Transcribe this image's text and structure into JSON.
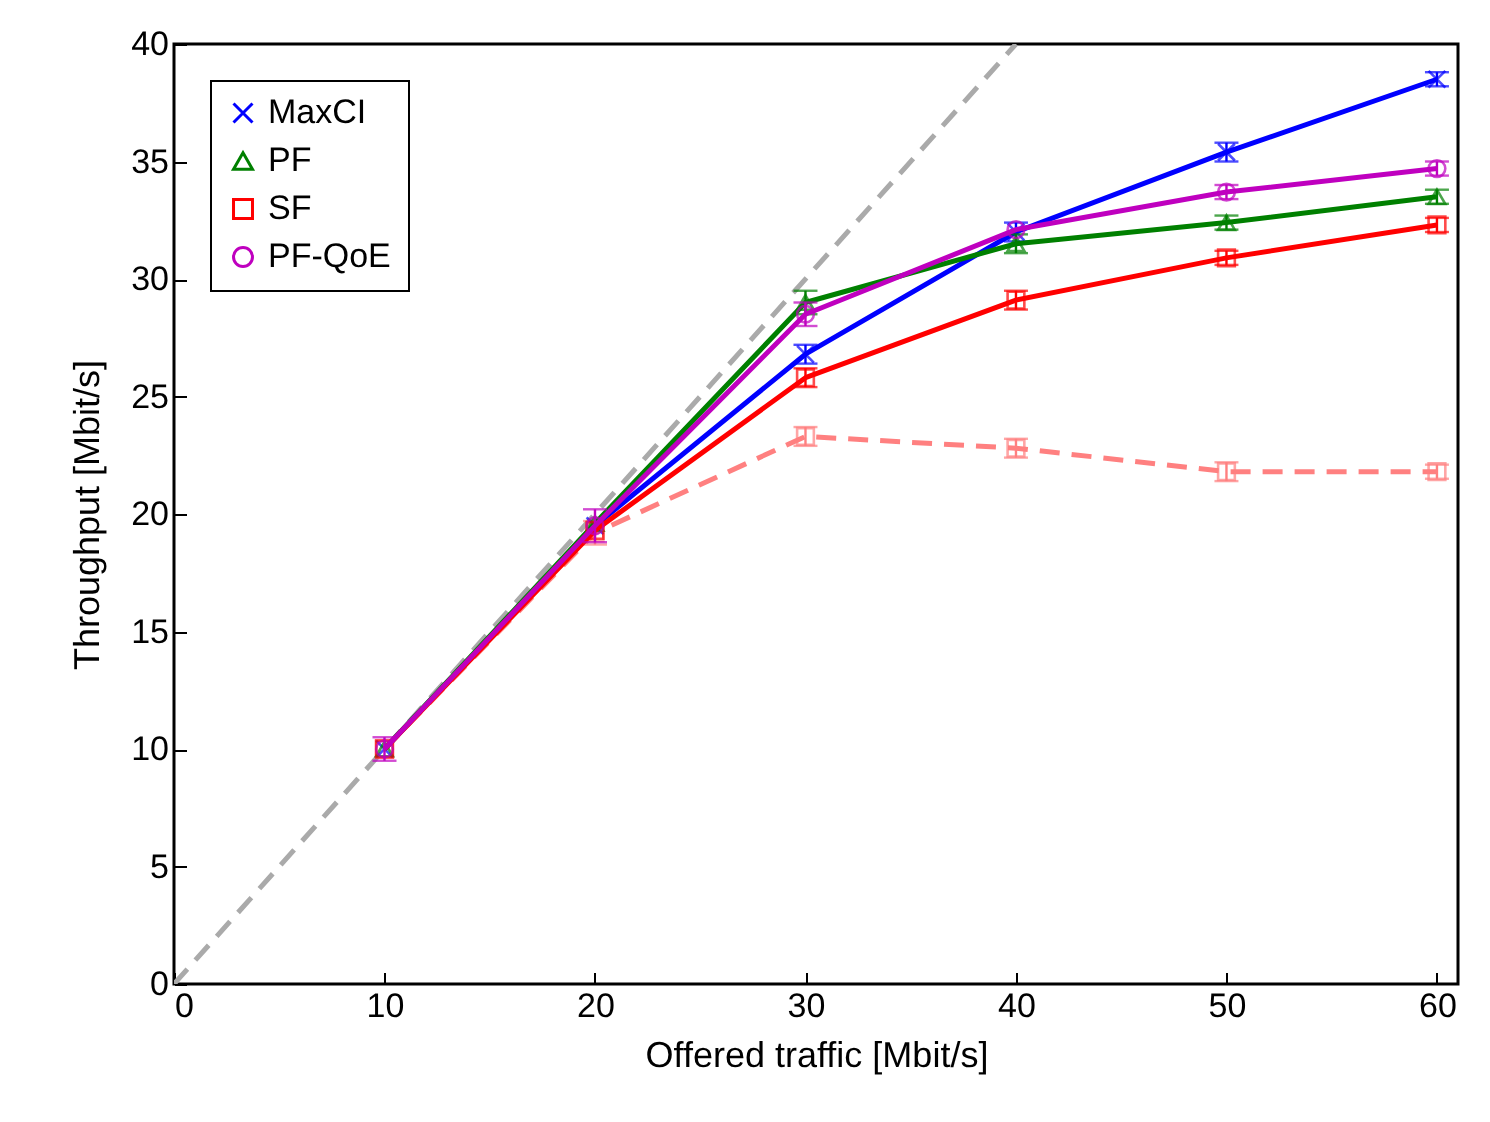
{
  "chart_data": {
    "type": "line",
    "xlabel": "Offered traffic [Mbit/s]",
    "ylabel": "Throughput [Mbit/s]",
    "x": [
      10,
      20,
      30,
      40,
      50,
      60
    ],
    "series": [
      {
        "type": "line",
        "color": "#aaaaaa",
        "marker": "none",
        "line_style": "dashed",
        "x": [
          0,
          40
        ],
        "values": [
          0,
          40
        ]
      },
      {
        "color": "#ff8080",
        "marker": "square",
        "line_style": "dashed",
        "values": [
          10,
          19.2,
          23.3,
          22.8,
          21.8,
          21.8
        ],
        "errors": [
          null,
          0.5,
          0.4,
          0.4,
          0.4,
          0.3
        ]
      },
      {
        "name": "MaxCI",
        "color": "#0000ff",
        "marker": "cross",
        "values": [
          10,
          19.5,
          26.8,
          32.0,
          35.4,
          38.5
        ],
        "errors": [
          null,
          null,
          0.4,
          0.4,
          0.4,
          0.3
        ]
      },
      {
        "name": "PF",
        "color": "#008000",
        "marker": "triangle",
        "values": [
          10,
          19.6,
          29.0,
          31.5,
          32.4,
          33.5
        ],
        "errors": [
          null,
          null,
          0.5,
          0.4,
          0.3,
          0.3
        ]
      },
      {
        "name": "SF",
        "color": "#ff0000",
        "marker": "square",
        "values": [
          10,
          19.3,
          25.8,
          29.1,
          30.9,
          32.3
        ],
        "errors": [
          null,
          null,
          0.4,
          0.4,
          0.3,
          0.3
        ]
      },
      {
        "name": "PF-QoE",
        "color": "#bf00bf",
        "marker": "circle",
        "values": [
          10,
          19.5,
          28.5,
          32.1,
          33.7,
          34.7
        ],
        "errors": [
          0.5,
          0.7,
          0.5,
          null,
          0.3,
          0.3
        ]
      }
    ],
    "xlim": [
      0,
      61
    ],
    "ylim": [
      0,
      40
    ],
    "xticks": [
      0,
      10,
      20,
      30,
      40,
      50,
      60
    ],
    "yticks": [
      0,
      5,
      10,
      15,
      20,
      25,
      30,
      35,
      40
    ],
    "grid": false,
    "legend": "top left"
  }
}
